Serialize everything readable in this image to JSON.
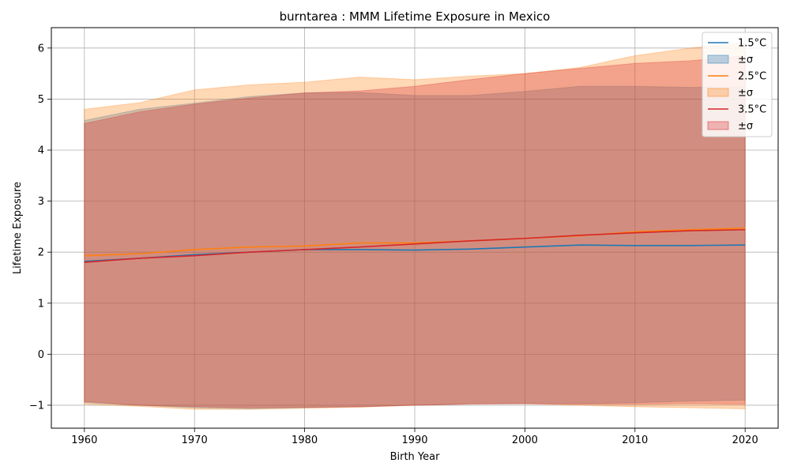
{
  "chart_data": {
    "type": "area",
    "title": "burntarea : MMM Lifetime Exposure in Mexico",
    "xlabel": "Birth Year",
    "ylabel": "Lifetime Exposure",
    "xlim": [
      1957,
      2023
    ],
    "ylim": [
      -1.45,
      6.4
    ],
    "xticks": [
      1960,
      1970,
      1980,
      1990,
      2000,
      2010,
      2020
    ],
    "yticks": [
      -1,
      0,
      1,
      2,
      3,
      4,
      5,
      6
    ],
    "grid": true,
    "legend_position": "top-right",
    "x": [
      1960,
      1965,
      1970,
      1975,
      1980,
      1985,
      1990,
      1995,
      2000,
      2005,
      2010,
      2015,
      2020
    ],
    "series": [
      {
        "name": "1.5°C",
        "color": "#1f77b4",
        "band_label": "±σ",
        "mean": [
          1.82,
          1.88,
          1.95,
          2.0,
          2.05,
          2.05,
          2.04,
          2.06,
          2.1,
          2.14,
          2.13,
          2.13,
          2.14
        ],
        "upper": [
          4.58,
          4.8,
          4.92,
          5.05,
          5.12,
          5.13,
          5.07,
          5.07,
          5.15,
          5.25,
          5.25,
          5.23,
          5.24
        ],
        "lower": [
          -0.95,
          -1.0,
          -1.05,
          -1.07,
          -1.05,
          -1.03,
          -1.0,
          -0.97,
          -0.97,
          -0.97,
          -0.95,
          -0.92,
          -0.9
        ]
      },
      {
        "name": "2.5°C",
        "color": "#ff7f0e",
        "band_label": "±σ",
        "mean": [
          1.93,
          1.97,
          2.05,
          2.1,
          2.12,
          2.18,
          2.18,
          2.22,
          2.27,
          2.32,
          2.4,
          2.44,
          2.47
        ],
        "upper": [
          4.8,
          4.93,
          5.18,
          5.28,
          5.33,
          5.43,
          5.38,
          5.45,
          5.5,
          5.62,
          5.85,
          6.0,
          6.1
        ],
        "lower": [
          -0.98,
          -1.02,
          -1.08,
          -1.08,
          -1.06,
          -1.04,
          -1.0,
          -0.97,
          -0.97,
          -1.0,
          -1.03,
          -1.05,
          -1.07
        ]
      },
      {
        "name": "3.5°C",
        "color": "#d62728",
        "band_label": "±σ",
        "mean": [
          1.8,
          1.88,
          1.93,
          2.0,
          2.05,
          2.1,
          2.16,
          2.22,
          2.27,
          2.33,
          2.38,
          2.42,
          2.44
        ],
        "upper": [
          4.52,
          4.75,
          4.9,
          5.02,
          5.12,
          5.16,
          5.25,
          5.38,
          5.5,
          5.6,
          5.7,
          5.75,
          5.85
        ],
        "lower": [
          -0.93,
          -1.0,
          -1.03,
          -1.05,
          -1.04,
          -1.03,
          -1.0,
          -0.98,
          -0.97,
          -0.98,
          -0.98,
          -0.97,
          -0.98
        ]
      }
    ]
  }
}
